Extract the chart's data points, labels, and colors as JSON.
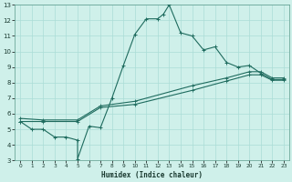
{
  "xlabel": "Humidex (Indice chaleur)",
  "bg_color": "#cff0ea",
  "grid_color": "#aaddd6",
  "line_color": "#1e6b5e",
  "xlim": [
    -0.5,
    23.5
  ],
  "ylim": [
    3,
    13
  ],
  "xticks": [
    0,
    1,
    2,
    3,
    4,
    5,
    6,
    7,
    8,
    9,
    10,
    11,
    12,
    13,
    14,
    15,
    16,
    17,
    18,
    19,
    20,
    21,
    22,
    23
  ],
  "yticks": [
    3,
    4,
    5,
    6,
    7,
    8,
    9,
    10,
    11,
    12,
    13
  ],
  "line1_x": [
    0,
    1,
    2,
    3,
    4,
    5,
    5,
    6,
    7,
    8,
    9,
    10,
    11,
    12,
    12.5,
    13,
    14,
    15,
    16,
    17,
    18,
    19,
    20,
    21,
    22,
    23
  ],
  "line1_y": [
    5.5,
    5.0,
    5.0,
    4.5,
    4.5,
    4.3,
    3.1,
    5.2,
    5.1,
    7.0,
    9.1,
    11.1,
    12.1,
    12.1,
    12.4,
    13.0,
    11.2,
    11.0,
    10.1,
    10.3,
    9.3,
    9.0,
    9.1,
    8.6,
    8.2,
    8.2
  ],
  "line2_x": [
    0,
    2,
    5,
    7,
    10,
    15,
    18,
    20,
    21,
    22,
    23
  ],
  "line2_y": [
    5.5,
    5.5,
    5.5,
    6.4,
    6.6,
    7.5,
    8.1,
    8.5,
    8.5,
    8.15,
    8.15
  ],
  "line3_x": [
    0,
    2,
    5,
    7,
    10,
    15,
    18,
    20,
    21,
    22,
    23
  ],
  "line3_y": [
    5.7,
    5.6,
    5.6,
    6.5,
    6.8,
    7.8,
    8.3,
    8.7,
    8.7,
    8.3,
    8.3
  ]
}
